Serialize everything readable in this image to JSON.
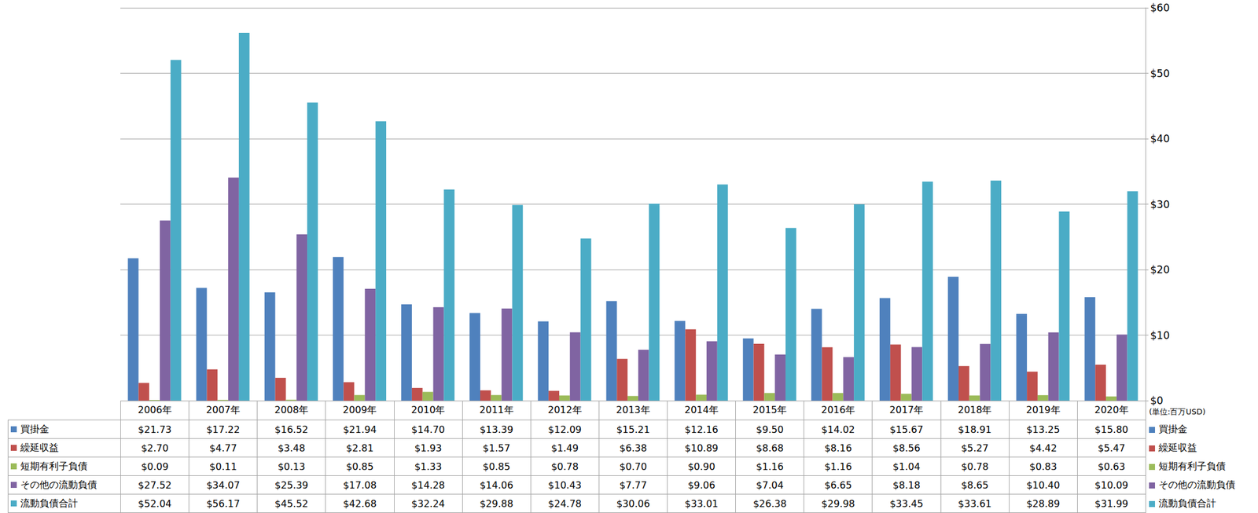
{
  "chart_data": {
    "type": "bar",
    "categories": [
      "2006年",
      "2007年",
      "2008年",
      "2009年",
      "2010年",
      "2011年",
      "2012年",
      "2013年",
      "2014年",
      "2015年",
      "2016年",
      "2017年",
      "2018年",
      "2019年",
      "2020年"
    ],
    "series": [
      {
        "name": "買掛金",
        "color": "#4f81bd",
        "values": [
          21.73,
          17.22,
          16.52,
          21.94,
          14.7,
          13.39,
          12.09,
          15.21,
          12.16,
          9.5,
          14.02,
          15.67,
          18.91,
          13.25,
          15.8
        ],
        "value_labels": [
          "$21.73",
          "$17.22",
          "$16.52",
          "$21.94",
          "$14.70",
          "$13.39",
          "$12.09",
          "$15.21",
          "$12.16",
          "$9.50",
          "$14.02",
          "$15.67",
          "$18.91",
          "$13.25",
          "$15.80"
        ]
      },
      {
        "name": "繰延収益",
        "color": "#c0504d",
        "values": [
          2.7,
          4.77,
          3.48,
          2.81,
          1.93,
          1.57,
          1.49,
          6.38,
          10.89,
          8.68,
          8.16,
          8.56,
          5.27,
          4.42,
          5.47
        ],
        "value_labels": [
          "$2.70",
          "$4.77",
          "$3.48",
          "$2.81",
          "$1.93",
          "$1.57",
          "$1.49",
          "$6.38",
          "$10.89",
          "$8.68",
          "$8.16",
          "$8.56",
          "$5.27",
          "$4.42",
          "$5.47"
        ]
      },
      {
        "name": "短期有利子負債",
        "color": "#9bbb59",
        "values": [
          0.09,
          0.11,
          0.13,
          0.85,
          1.33,
          0.85,
          0.78,
          0.7,
          0.9,
          1.16,
          1.16,
          1.04,
          0.78,
          0.83,
          0.63
        ],
        "value_labels": [
          "$0.09",
          "$0.11",
          "$0.13",
          "$0.85",
          "$1.33",
          "$0.85",
          "$0.78",
          "$0.70",
          "$0.90",
          "$1.16",
          "$1.16",
          "$1.04",
          "$0.78",
          "$0.83",
          "$0.63"
        ]
      },
      {
        "name": "その他の流動負債",
        "color": "#8064a2",
        "values": [
          27.52,
          34.07,
          25.39,
          17.08,
          14.28,
          14.06,
          10.43,
          7.77,
          9.06,
          7.04,
          6.65,
          8.18,
          8.65,
          10.4,
          10.09
        ],
        "value_labels": [
          "$27.52",
          "$34.07",
          "$25.39",
          "$17.08",
          "$14.28",
          "$14.06",
          "$10.43",
          "$7.77",
          "$9.06",
          "$7.04",
          "$6.65",
          "$8.18",
          "$8.65",
          "$10.40",
          "$10.09"
        ]
      },
      {
        "name": "流動負債合計",
        "color": "#4bacc6",
        "values": [
          52.04,
          56.17,
          45.52,
          42.68,
          32.24,
          29.88,
          24.78,
          30.06,
          33.01,
          26.38,
          29.98,
          33.45,
          33.61,
          28.89,
          31.99
        ],
        "value_labels": [
          "$52.04",
          "$56.17",
          "$45.52",
          "$42.68",
          "$32.24",
          "$29.88",
          "$24.78",
          "$30.06",
          "$33.01",
          "$26.38",
          "$29.98",
          "$33.45",
          "$33.61",
          "$28.89",
          "$31.99"
        ]
      }
    ],
    "ylim": [
      0,
      60
    ],
    "yticks": [
      {
        "value": 0,
        "label": "$0"
      },
      {
        "value": 10,
        "label": "$10"
      },
      {
        "value": 20,
        "label": "$20"
      },
      {
        "value": 30,
        "label": "$30"
      },
      {
        "value": 40,
        "label": "$40"
      },
      {
        "value": 50,
        "label": "$50"
      },
      {
        "value": 60,
        "label": "$60"
      }
    ],
    "grid": true,
    "annotations": [
      "(単位:百万USD)"
    ]
  }
}
